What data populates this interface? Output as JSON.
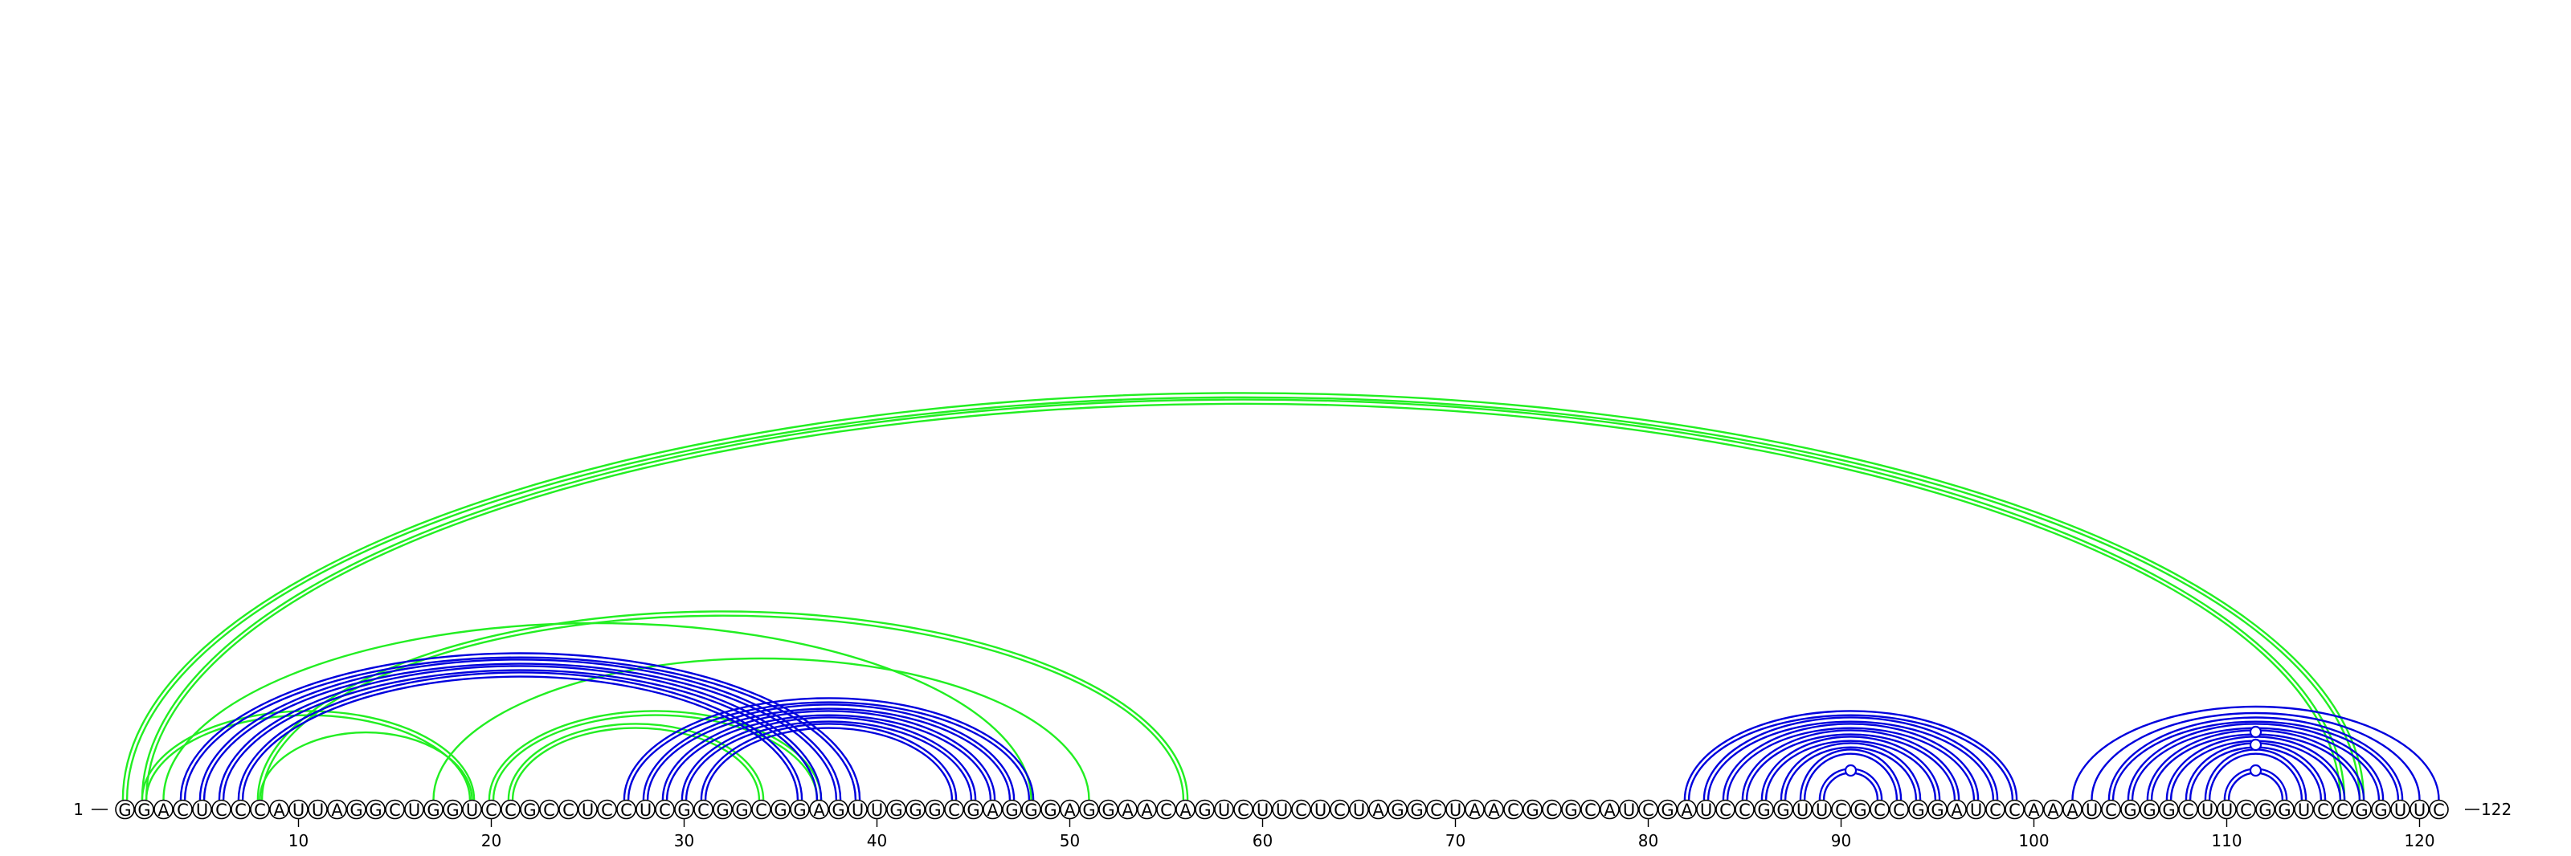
{
  "diagram": {
    "sequence": "GGACUCCCAUUAGGCUGGUCCGCCUCCUCGCGGCGGAGUUGGGCGAGGGAGGAACAGUCUUCUCUAGGCUAACGCGCAUCGAUCCGGUUCGCCGGAUCCAAAUCGGGCUUCGGUCCGGUUC",
    "start_label": "1",
    "end_label": "122",
    "ticks": [
      {
        "pos": 10,
        "label": "10"
      },
      {
        "pos": 20,
        "label": "20"
      },
      {
        "pos": 30,
        "label": "30"
      },
      {
        "pos": 40,
        "label": "40"
      },
      {
        "pos": 50,
        "label": "50"
      },
      {
        "pos": 60,
        "label": "60"
      },
      {
        "pos": 70,
        "label": "70"
      },
      {
        "pos": 80,
        "label": "80"
      },
      {
        "pos": 90,
        "label": "90"
      },
      {
        "pos": 100,
        "label": "100"
      },
      {
        "pos": 110,
        "label": "110"
      },
      {
        "pos": 120,
        "label": "120"
      }
    ],
    "colors": {
      "blue": "#0000dd",
      "green": "#22ee22"
    },
    "arcs": [
      {
        "i": 1,
        "j": 117,
        "color": "green",
        "double": true
      },
      {
        "i": 2,
        "j": 116,
        "color": "green",
        "double": true
      },
      {
        "i": 2,
        "j": 19,
        "color": "green",
        "double": true
      },
      {
        "i": 8,
        "j": 19,
        "color": "green",
        "double": false
      },
      {
        "i": 3,
        "j": 48,
        "color": "green",
        "double": false
      },
      {
        "i": 8,
        "j": 56,
        "color": "green",
        "double": true
      },
      {
        "i": 17,
        "j": 51,
        "color": "green",
        "double": false
      },
      {
        "i": 20,
        "j": 37,
        "color": "green",
        "double": true
      },
      {
        "i": 21,
        "j": 34,
        "color": "green",
        "double": true
      },
      {
        "i": 4,
        "j": 39,
        "color": "blue",
        "double": true
      },
      {
        "i": 5,
        "j": 38,
        "color": "blue",
        "double": true
      },
      {
        "i": 6,
        "j": 37,
        "color": "blue",
        "double": true
      },
      {
        "i": 7,
        "j": 36,
        "color": "blue",
        "double": true
      },
      {
        "i": 27,
        "j": 48,
        "color": "blue",
        "double": true
      },
      {
        "i": 28,
        "j": 47,
        "color": "blue",
        "double": true
      },
      {
        "i": 29,
        "j": 46,
        "color": "blue",
        "double": true
      },
      {
        "i": 30,
        "j": 45,
        "color": "blue",
        "double": true
      },
      {
        "i": 31,
        "j": 44,
        "color": "blue",
        "double": true
      },
      {
        "i": 82,
        "j": 99,
        "color": "blue",
        "double": true
      },
      {
        "i": 83,
        "j": 98,
        "color": "blue",
        "double": true
      },
      {
        "i": 84,
        "j": 97,
        "color": "blue",
        "double": true
      },
      {
        "i": 85,
        "j": 96,
        "color": "blue",
        "double": true
      },
      {
        "i": 86,
        "j": 95,
        "color": "blue",
        "double": true
      },
      {
        "i": 87,
        "j": 94,
        "color": "blue",
        "double": true
      },
      {
        "i": 88,
        "j": 93,
        "color": "blue",
        "double": true
      },
      {
        "i": 89,
        "j": 92,
        "color": "blue",
        "double": true
      },
      {
        "i": 102,
        "j": 121,
        "color": "blue",
        "double": false
      },
      {
        "i": 103,
        "j": 120,
        "color": "blue",
        "double": false
      },
      {
        "i": 104,
        "j": 119,
        "color": "blue",
        "double": true
      },
      {
        "i": 105,
        "j": 118,
        "color": "blue",
        "double": true
      },
      {
        "i": 106,
        "j": 117,
        "color": "blue",
        "double": true
      },
      {
        "i": 107,
        "j": 116,
        "color": "blue",
        "double": true
      },
      {
        "i": 108,
        "j": 115,
        "color": "blue",
        "double": true
      },
      {
        "i": 109,
        "j": 114,
        "color": "blue",
        "double": true
      },
      {
        "i": 110,
        "j": 113,
        "color": "blue",
        "double": true
      }
    ],
    "markers": [
      {
        "i": 106,
        "j": 117,
        "color": "blue"
      },
      {
        "i": 108,
        "j": 115,
        "color": "blue"
      },
      {
        "i": 110,
        "j": 113,
        "color": "blue"
      },
      {
        "i": 89,
        "j": 92,
        "color": "blue"
      }
    ]
  }
}
